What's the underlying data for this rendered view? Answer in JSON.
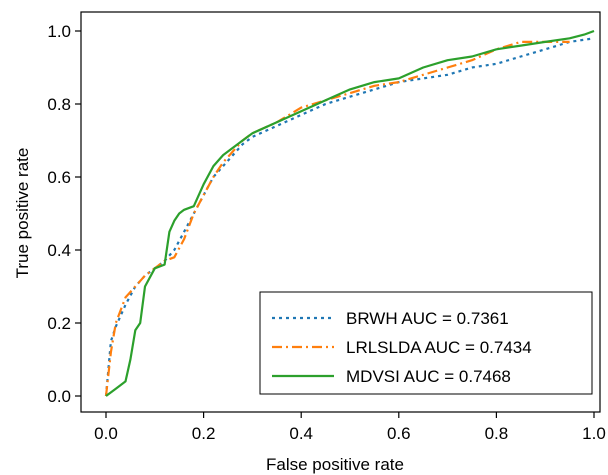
{
  "chart_data": {
    "type": "line",
    "title": "",
    "xlabel": "False positive rate",
    "ylabel": "True positive rate",
    "xlim": [
      0,
      1
    ],
    "ylim": [
      0,
      1
    ],
    "xticks": [
      0.0,
      0.2,
      0.4,
      0.6,
      0.8,
      1.0
    ],
    "xtick_labels": [
      "0.0",
      "0.2",
      "0.4",
      "0.6",
      "0.8",
      "1.0"
    ],
    "yticks": [
      0.0,
      0.2,
      0.4,
      0.6,
      0.8,
      1.0
    ],
    "ytick_labels": [
      "0.0",
      "0.2",
      "0.4",
      "0.6",
      "0.8",
      "1.0"
    ],
    "grid": false,
    "legend_position": "bottom-right",
    "series": [
      {
        "name": "BRWH",
        "legend_label": "BRWH  AUC = 0.7361",
        "color": "#1f77b4",
        "style": "dotted",
        "x": [
          0.0,
          0.01,
          0.02,
          0.04,
          0.06,
          0.08,
          0.1,
          0.12,
          0.14,
          0.16,
          0.18,
          0.2,
          0.22,
          0.24,
          0.26,
          0.28,
          0.3,
          0.35,
          0.4,
          0.45,
          0.5,
          0.55,
          0.6,
          0.65,
          0.7,
          0.75,
          0.8,
          0.85,
          0.9,
          0.95,
          1.0
        ],
        "y": [
          0.0,
          0.15,
          0.19,
          0.25,
          0.3,
          0.33,
          0.35,
          0.37,
          0.4,
          0.45,
          0.5,
          0.55,
          0.6,
          0.63,
          0.66,
          0.69,
          0.71,
          0.74,
          0.77,
          0.8,
          0.82,
          0.84,
          0.86,
          0.87,
          0.88,
          0.9,
          0.91,
          0.93,
          0.95,
          0.97,
          0.98
        ]
      },
      {
        "name": "LRLSLDA",
        "legend_label": "LRLSLDA  AUC = 0.7434",
        "color": "#ff7f0e",
        "style": "dashdot",
        "x": [
          0.0,
          0.01,
          0.02,
          0.04,
          0.06,
          0.08,
          0.1,
          0.12,
          0.14,
          0.16,
          0.18,
          0.2,
          0.22,
          0.24,
          0.26,
          0.28,
          0.3,
          0.35,
          0.4,
          0.45,
          0.5,
          0.55,
          0.6,
          0.65,
          0.7,
          0.75,
          0.8,
          0.85,
          0.9,
          0.95
        ],
        "y": [
          0.0,
          0.12,
          0.2,
          0.27,
          0.3,
          0.33,
          0.35,
          0.37,
          0.38,
          0.43,
          0.5,
          0.55,
          0.6,
          0.64,
          0.67,
          0.7,
          0.72,
          0.75,
          0.79,
          0.81,
          0.83,
          0.85,
          0.86,
          0.88,
          0.9,
          0.92,
          0.95,
          0.97,
          0.97,
          0.97
        ]
      },
      {
        "name": "MDVSI",
        "legend_label": "MDVSI  AUC = 0.7468",
        "color": "#2ca02c",
        "style": "solid",
        "x": [
          0.0,
          0.02,
          0.04,
          0.05,
          0.06,
          0.07,
          0.08,
          0.1,
          0.12,
          0.13,
          0.14,
          0.15,
          0.16,
          0.18,
          0.2,
          0.22,
          0.24,
          0.26,
          0.28,
          0.3,
          0.35,
          0.4,
          0.45,
          0.5,
          0.55,
          0.6,
          0.65,
          0.7,
          0.75,
          0.8,
          0.85,
          0.9,
          0.95,
          0.98,
          1.0
        ],
        "y": [
          0.0,
          0.02,
          0.04,
          0.1,
          0.18,
          0.2,
          0.3,
          0.35,
          0.36,
          0.45,
          0.48,
          0.5,
          0.51,
          0.52,
          0.58,
          0.63,
          0.66,
          0.68,
          0.7,
          0.72,
          0.75,
          0.78,
          0.81,
          0.84,
          0.86,
          0.87,
          0.9,
          0.92,
          0.93,
          0.95,
          0.96,
          0.97,
          0.98,
          0.99,
          1.0
        ]
      }
    ]
  }
}
